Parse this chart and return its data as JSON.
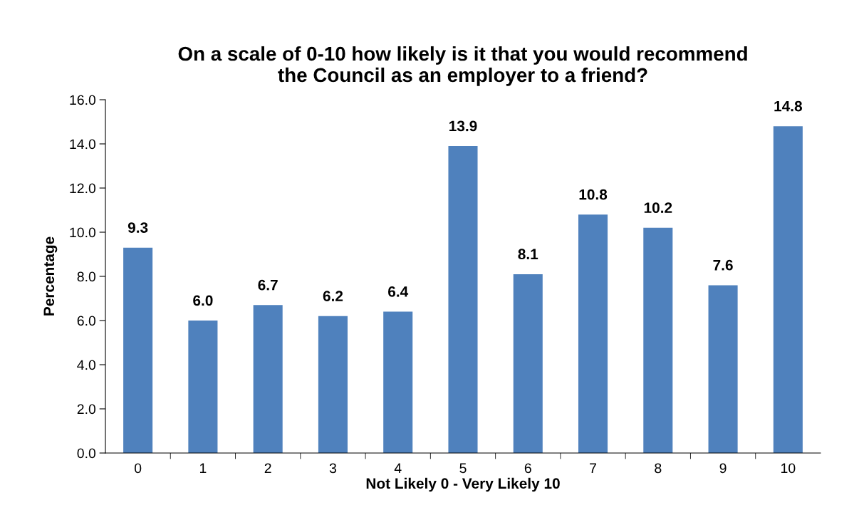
{
  "chart_data": {
    "type": "bar",
    "title": "On a scale of 0-10 how likely is it that you would recommend\nthe Council as an employer to a friend?",
    "xlabel": "Not Likely 0 - Very Likely 10",
    "ylabel": "Percentage",
    "categories": [
      "0",
      "1",
      "2",
      "3",
      "4",
      "5",
      "6",
      "7",
      "8",
      "9",
      "10"
    ],
    "values": [
      9.3,
      6.0,
      6.7,
      6.2,
      6.4,
      13.9,
      8.1,
      10.8,
      10.2,
      7.6,
      14.8
    ],
    "color": "#4f81bd",
    "ylim": [
      0,
      16
    ],
    "yticks": [
      {
        "value": 0,
        "label": "0.0"
      },
      {
        "value": 2,
        "label": "2.0"
      },
      {
        "value": 4,
        "label": "4.0"
      },
      {
        "value": 6,
        "label": "6.0"
      },
      {
        "value": 8,
        "label": "8.0"
      },
      {
        "value": 10,
        "label": "10.0"
      },
      {
        "value": 12,
        "label": "12.0"
      },
      {
        "value": 14,
        "label": "14.0"
      },
      {
        "value": 16,
        "label": "16.0"
      }
    ],
    "value_labels": [
      "9.3",
      "6.0",
      "6.7",
      "6.2",
      "6.4",
      "13.9",
      "8.1",
      "10.8",
      "10.2",
      "7.6",
      "14.8"
    ],
    "grid": false,
    "legend": false
  }
}
